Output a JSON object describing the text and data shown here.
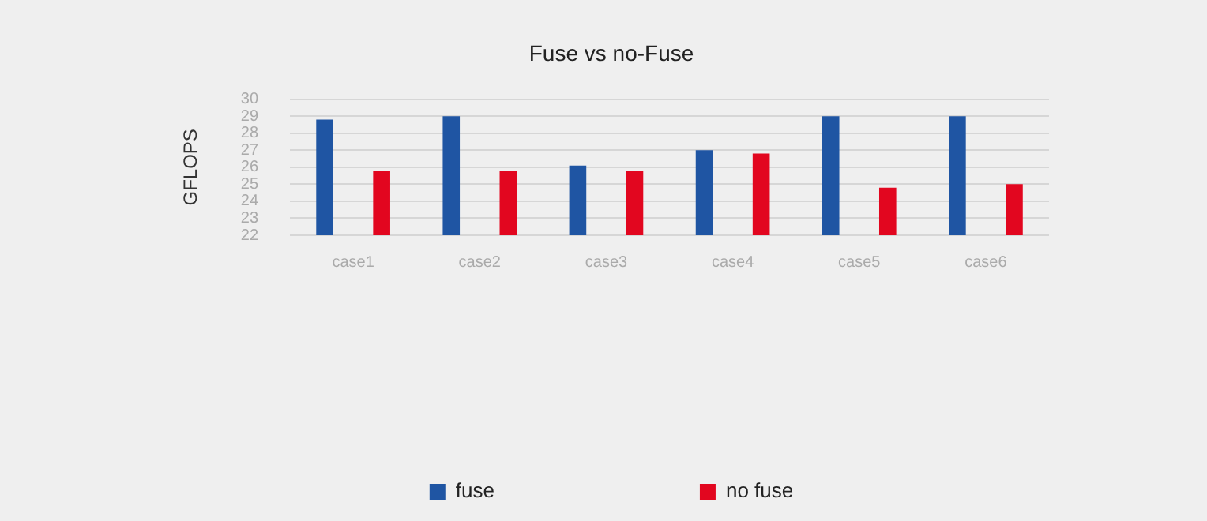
{
  "chart_data": {
    "type": "bar",
    "title": "Fuse vs no-Fuse",
    "ylabel": "GFLOPS",
    "categories": [
      "case1",
      "case2",
      "case3",
      "case4",
      "case5",
      "case6"
    ],
    "series": [
      {
        "name": "fuse",
        "color": "#1f55a3",
        "values": [
          28.8,
          29.0,
          26.1,
          27.0,
          29.0,
          29.0
        ]
      },
      {
        "name": "no fuse",
        "color": "#e2061f",
        "values": [
          25.8,
          25.8,
          25.8,
          26.8,
          24.8,
          25.0
        ]
      }
    ],
    "ylim": [
      22,
      30
    ],
    "yticks": [
      22,
      23,
      24,
      25,
      26,
      27,
      28,
      29,
      30
    ],
    "grid": "y",
    "legend": "bottom"
  }
}
